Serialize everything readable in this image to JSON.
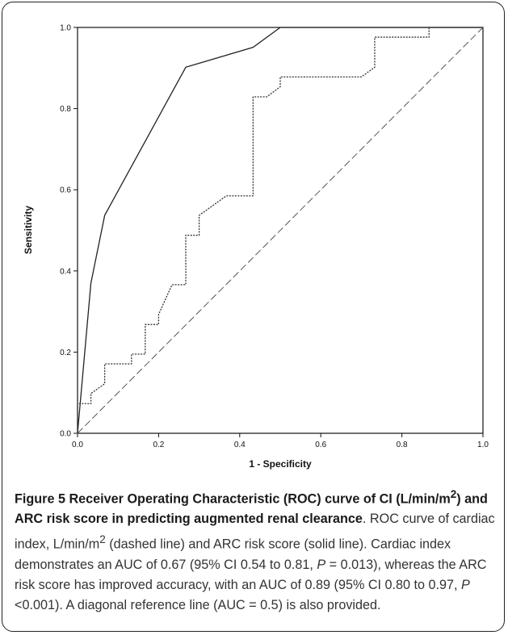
{
  "chart_data": {
    "type": "line",
    "xlabel": "1 - Specificity",
    "ylabel": "Sensitivity",
    "xlim": [
      0.0,
      1.0
    ],
    "ylim": [
      0.0,
      1.0
    ],
    "x_ticks": [
      "0.0",
      "0.2",
      "0.4",
      "0.6",
      "0.8",
      "1.0"
    ],
    "y_ticks": [
      "0.0",
      "0.2",
      "0.4",
      "0.6",
      "0.8",
      "1.0"
    ],
    "grid": false,
    "series": [
      {
        "style": "solid",
        "x": [
          0.0,
          0.033,
          0.067,
          0.267,
          0.433,
          0.5,
          1.0
        ],
        "y": [
          0.0,
          0.37,
          0.537,
          0.902,
          0.951,
          1.0,
          1.0
        ]
      },
      {
        "style": "dashed",
        "x": [
          0.0,
          0.0,
          0.033,
          0.033,
          0.067,
          0.067,
          0.133,
          0.133,
          0.167,
          0.167,
          0.2,
          0.2,
          0.233,
          0.233,
          0.267,
          0.267,
          0.3,
          0.3,
          0.367,
          0.433,
          0.433,
          0.467,
          0.5,
          0.5,
          0.7,
          0.733,
          0.733,
          0.867,
          0.867,
          1.0
        ],
        "y": [
          0.0,
          0.073,
          0.073,
          0.098,
          0.122,
          0.171,
          0.171,
          0.195,
          0.195,
          0.268,
          0.268,
          0.293,
          0.366,
          0.366,
          0.366,
          0.488,
          0.488,
          0.537,
          0.585,
          0.585,
          0.829,
          0.829,
          0.854,
          0.878,
          0.878,
          0.902,
          0.976,
          0.976,
          1.0,
          1.0
        ]
      },
      {
        "style": "reference",
        "x": [
          0.0,
          1.0
        ],
        "y": [
          0.0,
          1.0
        ]
      }
    ]
  },
  "caption": {
    "title_bold_1": "Figure 5 Receiver Operating Characteristic (ROC) curve of CI (L/min/m",
    "title_sup": "2",
    "title_bold_2": ") and ARC risk score in predicting augmented renal clearance",
    "body_1": ". ROC curve of cardiac index, L/min/m",
    "body_sup": "2",
    "body_2": " (dashed line) and ARC risk score (solid line). Cardiac index demonstrates an AUC of 0.67 (95% CI 0.54 to 0.81, ",
    "p_symbol_1": "P",
    "body_3": " = 0.013), whereas the ARC risk score has improved accuracy, with an AUC of 0.89 (95% CI 0.80 to 0.97, ",
    "p_symbol_2": "P",
    "body_4": " <0.001). A diagonal reference line (AUC = 0.5) is also provided."
  }
}
